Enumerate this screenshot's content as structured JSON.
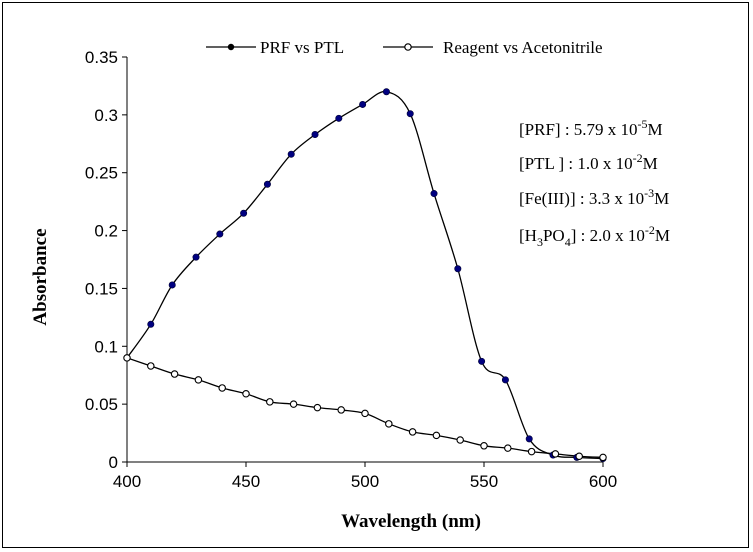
{
  "chart_data": {
    "type": "line",
    "xlabel": "Wavelength (nm)",
    "ylabel": "Absorbance",
    "xlim": [
      400,
      600
    ],
    "ylim": [
      0,
      0.35
    ],
    "xticks": [
      "400",
      "450",
      "500",
      "550",
      "600"
    ],
    "yticks": [
      "0",
      "0.05",
      "0.1",
      "0.15",
      "0.2",
      "0.25",
      "0.3",
      "0.35"
    ],
    "grid": false,
    "legend_position": "top",
    "series": [
      {
        "name": "PRF vs PTL",
        "marker": "filled-circle",
        "color": "#000080",
        "x": [
          400,
          410,
          419,
          429,
          439,
          449,
          459,
          469,
          479,
          489,
          499,
          509,
          519,
          529,
          539,
          549,
          559,
          569,
          579,
          589,
          600
        ],
        "y": [
          0.09,
          0.119,
          0.153,
          0.177,
          0.197,
          0.215,
          0.24,
          0.266,
          0.283,
          0.297,
          0.309,
          0.32,
          0.301,
          0.232,
          0.167,
          0.087,
          0.071,
          0.02,
          0.006,
          0.004,
          0.003
        ]
      },
      {
        "name": "Reagent vs Acetonitrile",
        "marker": "open-circle",
        "color": "#000000",
        "x": [
          400,
          410,
          420,
          430,
          440,
          450,
          460,
          470,
          480,
          490,
          500,
          510,
          520,
          530,
          540,
          550,
          560,
          570,
          580,
          590,
          600
        ],
        "y": [
          0.09,
          0.083,
          0.076,
          0.071,
          0.064,
          0.059,
          0.052,
          0.05,
          0.047,
          0.045,
          0.042,
          0.033,
          0.026,
          0.023,
          0.019,
          0.014,
          0.012,
          0.009,
          0.007,
          0.005,
          0.004
        ]
      }
    ],
    "annotations": [
      {
        "text": "[PRF] : 5.79 x 10",
        "sup": "-5",
        "tail": "M"
      },
      {
        "text": "[PTL ] : 1.0 x 10",
        "sup": "-2",
        "tail": "M"
      },
      {
        "text": "[Fe(III)] : 3.3 x 10",
        "sup": "-3",
        "tail": "M"
      },
      {
        "text": "[H",
        "sub": "3",
        "mid": "PO",
        "sub2": "4",
        "text2": "] : 2.0 x 10",
        "sup": "-2",
        "tail": "M"
      }
    ]
  }
}
